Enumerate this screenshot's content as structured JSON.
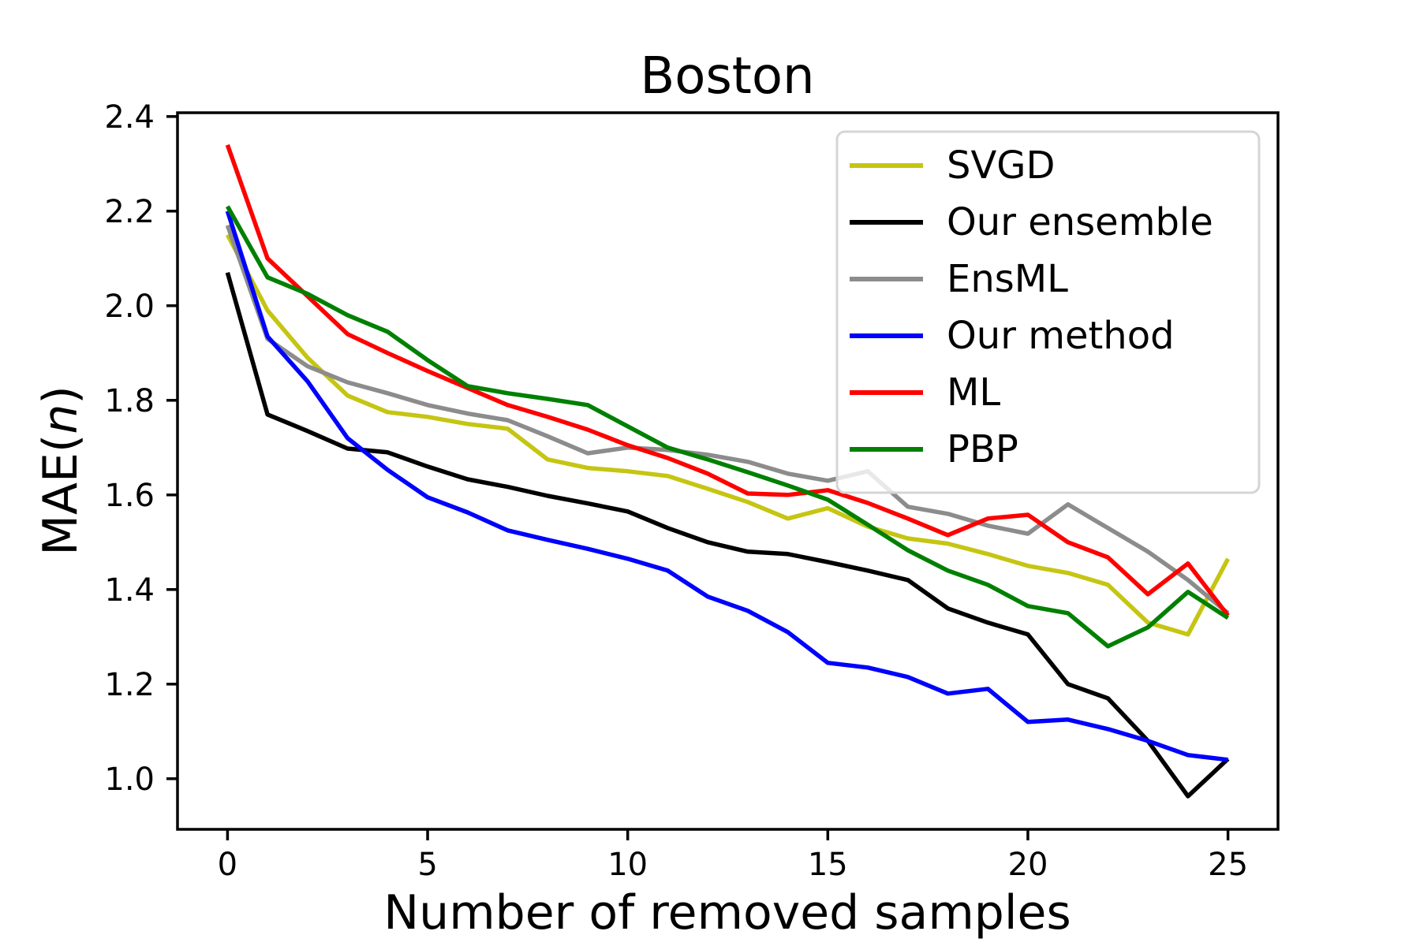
{
  "figure": {
    "title": "Boston",
    "xlabel": "Number of removed samples",
    "ylabel": "MAE(n)",
    "ylabel_parts": {
      "prefix": "MAE(",
      "var": "n",
      "suffix": ")"
    }
  },
  "chart_data": {
    "type": "line",
    "title": "Boston",
    "xlabel": "Number of removed samples",
    "ylabel": "MAE(n)",
    "grid": false,
    "x": [
      0,
      1,
      2,
      3,
      4,
      5,
      6,
      7,
      8,
      9,
      10,
      11,
      12,
      13,
      14,
      15,
      16,
      17,
      18,
      19,
      20,
      21,
      22,
      23,
      24,
      25
    ],
    "xticks": [
      0,
      5,
      10,
      15,
      20,
      25
    ],
    "yticks": [
      1.0,
      1.2,
      1.4,
      1.6,
      1.8,
      2.0,
      2.2,
      2.4
    ],
    "xlim": [
      -1.25,
      26.25
    ],
    "ylim": [
      0.893,
      2.408
    ],
    "axis_color": "#000000",
    "legend": {
      "position": "upper right",
      "frame_color": "#d5d5d5",
      "frame_fill": "#ffffff",
      "frame_opacity": 0.8,
      "entries": [
        "SVGD",
        "Our ensemble",
        "EnsML",
        "Our method",
        "ML",
        "PBP"
      ]
    },
    "series": [
      {
        "name": "SVGD",
        "color": "#c5c513",
        "values": [
          2.15,
          1.99,
          1.89,
          1.81,
          1.775,
          1.765,
          1.75,
          1.74,
          1.675,
          1.657,
          1.65,
          1.64,
          1.613,
          1.585,
          1.55,
          1.572,
          1.533,
          1.508,
          1.497,
          1.475,
          1.45,
          1.435,
          1.41,
          1.33,
          1.305,
          1.465
        ]
      },
      {
        "name": "Our ensemble",
        "color": "#000000",
        "values": [
          2.07,
          1.77,
          1.735,
          1.698,
          1.69,
          1.66,
          1.633,
          1.617,
          1.598,
          1.582,
          1.565,
          1.53,
          1.5,
          1.48,
          1.475,
          1.458,
          1.44,
          1.42,
          1.36,
          1.33,
          1.305,
          1.2,
          1.17,
          1.08,
          0.963,
          1.042
        ]
      },
      {
        "name": "EnsML",
        "color": "#8c8c8c",
        "values": [
          2.17,
          1.93,
          1.872,
          1.838,
          1.815,
          1.79,
          1.772,
          1.758,
          1.724,
          1.688,
          1.7,
          1.695,
          1.685,
          1.67,
          1.645,
          1.63,
          1.65,
          1.575,
          1.56,
          1.535,
          1.518,
          1.58,
          1.53,
          1.48,
          1.42,
          1.35
        ]
      },
      {
        "name": "Our method",
        "color": "#0000ff",
        "values": [
          2.2,
          1.935,
          1.84,
          1.72,
          1.653,
          1.595,
          1.563,
          1.525,
          1.505,
          1.486,
          1.465,
          1.44,
          1.385,
          1.355,
          1.31,
          1.245,
          1.235,
          1.215,
          1.18,
          1.19,
          1.12,
          1.125,
          1.105,
          1.08,
          1.05,
          1.04
        ]
      },
      {
        "name": "ML",
        "color": "#ff0000",
        "values": [
          2.34,
          2.1,
          2.02,
          1.94,
          1.9,
          1.862,
          1.826,
          1.79,
          1.765,
          1.738,
          1.705,
          1.678,
          1.645,
          1.603,
          1.6,
          1.61,
          1.583,
          1.55,
          1.515,
          1.55,
          1.558,
          1.5,
          1.468,
          1.39,
          1.455,
          1.345
        ]
      },
      {
        "name": "PBP",
        "color": "#008000",
        "values": [
          2.21,
          2.06,
          2.025,
          1.98,
          1.945,
          1.885,
          1.83,
          1.815,
          1.803,
          1.79,
          1.745,
          1.7,
          1.675,
          1.648,
          1.62,
          1.59,
          1.537,
          1.483,
          1.44,
          1.41,
          1.365,
          1.35,
          1.28,
          1.32,
          1.395,
          1.34
        ]
      }
    ]
  }
}
